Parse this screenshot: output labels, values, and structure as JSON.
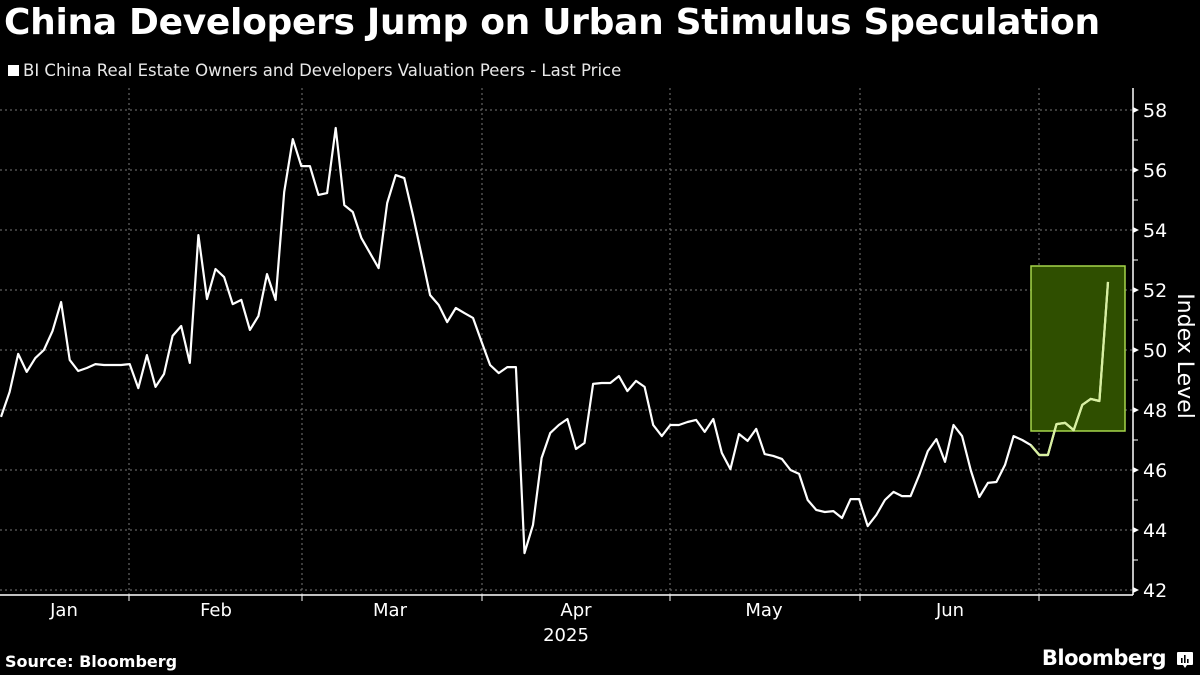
{
  "header": {
    "title": "China Developers Jump on Urban Stimulus Speculation",
    "legend_label": "BI China Real Estate Owners and Developers Valuation Peers - Last Price"
  },
  "footer": {
    "source": "Source: Bloomberg",
    "brand": "Bloomberg"
  },
  "colors": {
    "background": "#000000",
    "line": "#ffffff",
    "highlight_fill": "#2f4f00",
    "highlight_border": "#a6d64a",
    "highlight_line": "#d8f0a0",
    "grid": "#777777"
  },
  "chart_data": {
    "type": "line",
    "title": "China Developers Jump on Urban Stimulus Speculation",
    "xlabel": "2025",
    "ylabel": "Index Level",
    "ylim": [
      42,
      58
    ],
    "yticks": [
      42,
      44,
      46,
      48,
      50,
      52,
      54,
      56,
      58
    ],
    "x_month_labels": [
      "Jan",
      "Feb",
      "Mar",
      "Apr",
      "May",
      "Jun"
    ],
    "x_year_label": "2025",
    "grid": true,
    "legend_position": "top-left",
    "highlight": {
      "description": "Green box highlighting the final surge",
      "x_start_index": 120,
      "y_range": [
        47.3,
        52.8
      ]
    },
    "series": [
      {
        "name": "BI China Real Estate Owners and Developers Valuation Peers - Last Price",
        "values": [
          47.77,
          48.6,
          49.87,
          49.27,
          49.73,
          50.0,
          50.63,
          51.6,
          49.67,
          49.3,
          49.4,
          49.53,
          49.5,
          49.5,
          49.5,
          49.53,
          48.73,
          49.83,
          48.77,
          49.2,
          50.47,
          50.8,
          49.57,
          53.83,
          51.7,
          52.7,
          52.43,
          51.53,
          51.67,
          50.67,
          51.13,
          52.53,
          51.67,
          55.27,
          57.03,
          56.13,
          56.13,
          55.17,
          55.23,
          57.4,
          54.83,
          54.6,
          53.73,
          53.23,
          52.73,
          54.9,
          55.83,
          55.73,
          54.5,
          53.17,
          51.83,
          51.5,
          50.93,
          51.4,
          51.23,
          51.07,
          50.27,
          49.5,
          49.23,
          49.43,
          49.43,
          43.23,
          44.17,
          46.4,
          47.23,
          47.5,
          47.7,
          46.7,
          46.9,
          48.87,
          48.9,
          48.9,
          49.13,
          48.63,
          48.97,
          48.77,
          47.5,
          47.13,
          47.5,
          47.5,
          47.6,
          47.67,
          47.27,
          47.7,
          46.57,
          46.03,
          47.2,
          46.97,
          47.37,
          46.53,
          46.47,
          46.37,
          46.0,
          45.87,
          45.0,
          44.67,
          44.6,
          44.63,
          44.4,
          45.03,
          45.03,
          44.13,
          44.5,
          45.0,
          45.27,
          45.13,
          45.13,
          45.83,
          46.63,
          47.03,
          46.27,
          47.5,
          47.13,
          46.0,
          45.1,
          45.57,
          45.6,
          46.17,
          47.13,
          47.0,
          46.83,
          46.5,
          46.5,
          47.53,
          47.57,
          47.33,
          48.17,
          48.37,
          48.3,
          52.27
        ]
      }
    ]
  }
}
